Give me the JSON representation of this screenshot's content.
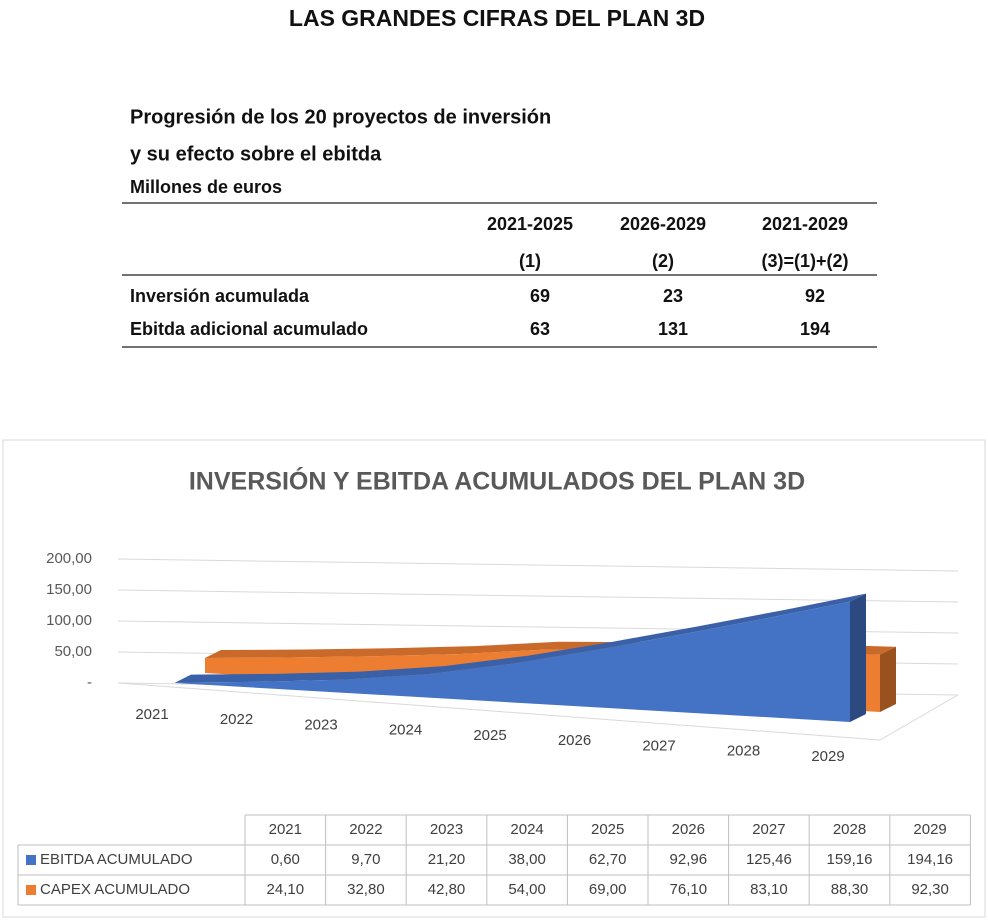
{
  "header": {
    "title": "LAS GRANDES CIFRAS DEL PLAN 3D"
  },
  "table": {
    "title_lines": [
      "Progresión de los 20 proyectos de inversión",
      "y su efecto sobre el ebitda",
      "Millones de euros"
    ],
    "columns": [
      [
        "2021-2025",
        "(1)"
      ],
      [
        "2026-2029",
        "(2)"
      ],
      [
        "2021-2029",
        "(3)=(1)+(2)"
      ]
    ],
    "rows": [
      [
        "Inversión acumulada",
        69,
        23,
        92
      ],
      [
        "Ebitda adicional acumulado",
        63,
        131,
        194
      ]
    ]
  },
  "chart_data": {
    "type": "area3d",
    "title": "INVERSIÓN Y EBITDA ACUMULADOS DEL PLAN 3D",
    "categories": [
      "2021",
      "2022",
      "2023",
      "2024",
      "2025",
      "2026",
      "2027",
      "2028",
      "2029"
    ],
    "series": [
      {
        "name": "EBITDA ACUMULADO",
        "color": "#4472c4",
        "values": [
          0.6,
          9.7,
          21.2,
          38.0,
          62.7,
          92.96,
          125.46,
          159.16,
          194.16
        ],
        "value_labels": [
          "0,60",
          "9,70",
          "21,20",
          "38,00",
          "62,70",
          "92,96",
          "125,46",
          "159,16",
          "194,16"
        ]
      },
      {
        "name": "CAPEX ACUMULADO",
        "color": "#ed7d31",
        "values": [
          24.1,
          32.8,
          42.8,
          54.0,
          69.0,
          76.1,
          83.1,
          88.3,
          92.3
        ],
        "value_labels": [
          "24,10",
          "32,80",
          "42,80",
          "54,00",
          "69,00",
          "76,10",
          "83,10",
          "88,30",
          "92,30"
        ]
      }
    ],
    "ylim": [
      0,
      200
    ],
    "yticks": [
      {
        "value": 0,
        "label": "-"
      },
      {
        "value": 50,
        "label": "50,00"
      },
      {
        "value": 100,
        "label": "100,00"
      },
      {
        "value": 150,
        "label": "150,00"
      },
      {
        "value": 200,
        "label": "200,00"
      }
    ],
    "grid": true
  }
}
